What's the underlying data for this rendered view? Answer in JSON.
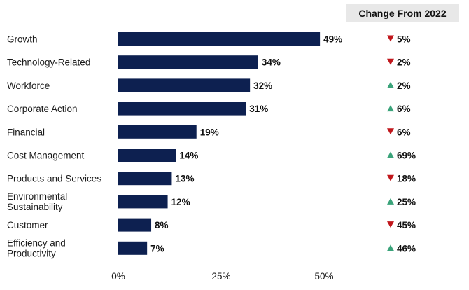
{
  "chart_data": {
    "type": "bar",
    "orientation": "horizontal",
    "categories": [
      "Growth",
      "Technology-Related",
      "Workforce",
      "Corporate Action",
      "Financial",
      "Cost Management",
      "Products and Services",
      "Environmental Sustainability",
      "Customer",
      "Efficiency and Productivity"
    ],
    "values": [
      49,
      34,
      32,
      31,
      19,
      14,
      13,
      12,
      8,
      7
    ],
    "value_labels": [
      "49%",
      "34%",
      "32%",
      "31%",
      "19%",
      "14%",
      "13%",
      "12%",
      "8%",
      "7%"
    ],
    "xlim": [
      0,
      50
    ],
    "xticks": [
      "0%",
      "25%",
      "50%"
    ],
    "bar_color": "#0d2050",
    "grid": false,
    "change_header": "Change From 2022",
    "changes": [
      {
        "label": "5%",
        "direction": "down"
      },
      {
        "label": "2%",
        "direction": "down"
      },
      {
        "label": "2%",
        "direction": "up"
      },
      {
        "label": "6%",
        "direction": "up"
      },
      {
        "label": "6%",
        "direction": "down"
      },
      {
        "label": "69%",
        "direction": "up"
      },
      {
        "label": "18%",
        "direction": "down"
      },
      {
        "label": "25%",
        "direction": "up"
      },
      {
        "label": "45%",
        "direction": "down"
      },
      {
        "label": "46%",
        "direction": "up"
      }
    ],
    "up_color": "#3aa37a",
    "down_color": "#c0161b"
  }
}
